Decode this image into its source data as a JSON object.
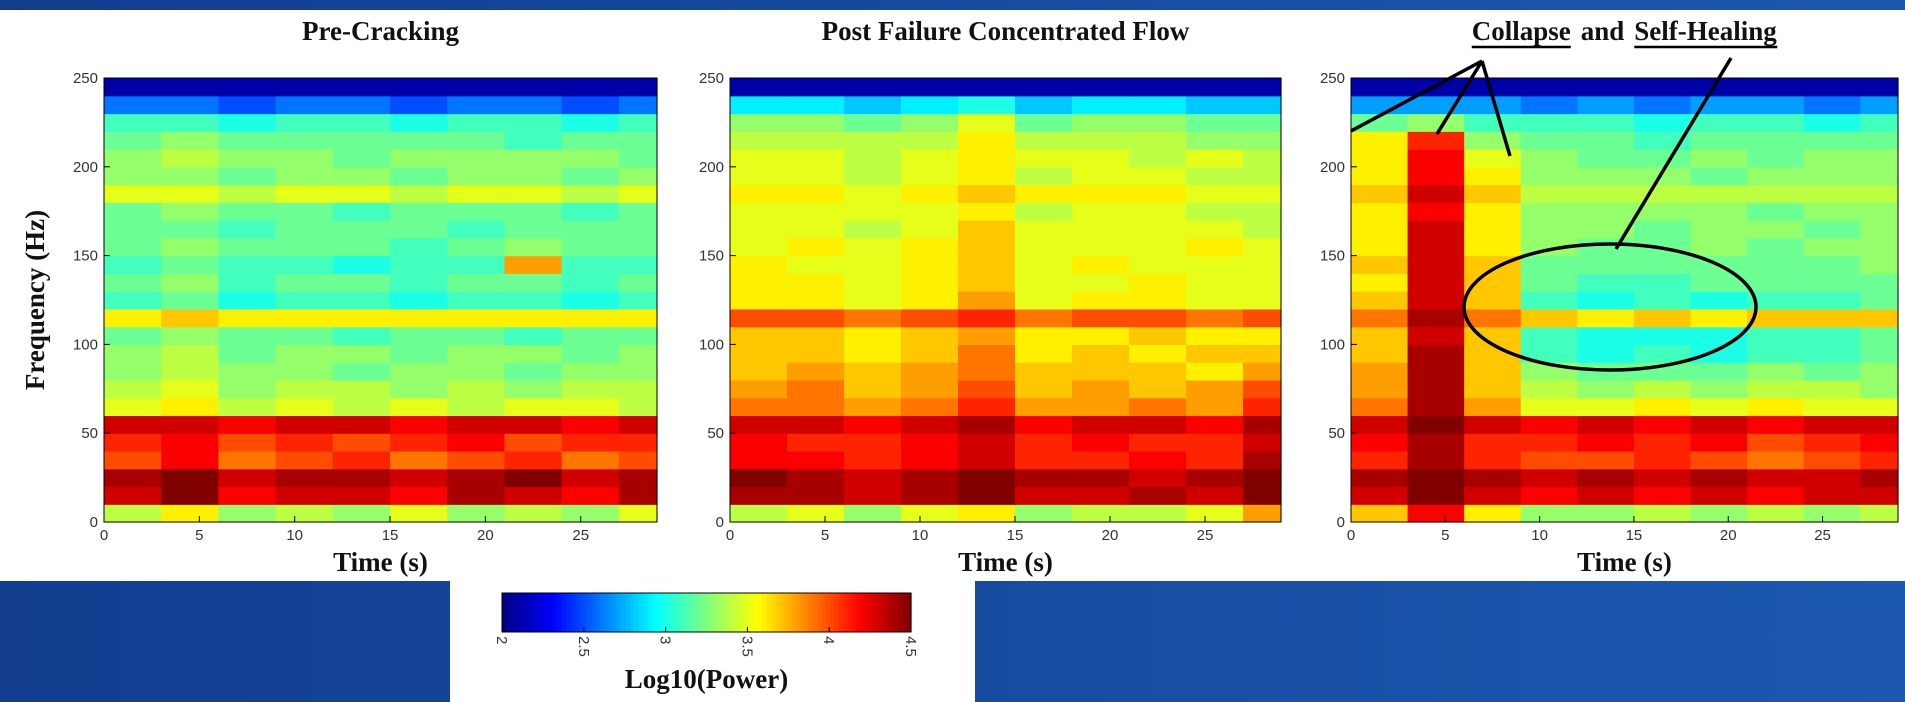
{
  "chart_data": [
    {
      "type": "heatmap",
      "title": "Pre-Cracking",
      "xlabel": "Time (s)",
      "ylabel": "Frequency (Hz)",
      "xlim": [
        0,
        29
      ],
      "ylim": [
        0,
        250
      ],
      "xticks": [
        0,
        5,
        10,
        15,
        20,
        25
      ],
      "yticks": [
        0,
        50,
        100,
        150,
        200,
        250
      ],
      "xbins": [
        0,
        3,
        6,
        9,
        12,
        15,
        18,
        21,
        24,
        27,
        29
      ],
      "ybins": [
        0,
        10,
        20,
        30,
        40,
        50,
        60,
        70,
        80,
        90,
        100,
        110,
        120,
        130,
        140,
        150,
        160,
        170,
        180,
        190,
        200,
        210,
        220,
        230,
        240,
        250
      ],
      "z": [
        [
          3.4,
          3.6,
          3.3,
          3.4,
          3.3,
          3.5,
          3.3,
          3.4,
          3.3,
          3.5
        ],
        [
          4.3,
          4.5,
          4.2,
          4.3,
          4.3,
          4.2,
          4.4,
          4.3,
          4.2,
          4.4
        ],
        [
          4.4,
          4.5,
          4.3,
          4.4,
          4.4,
          4.3,
          4.4,
          4.5,
          4.3,
          4.4
        ],
        [
          4.0,
          4.2,
          3.9,
          4.0,
          4.1,
          3.9,
          4.0,
          4.1,
          3.9,
          4.0
        ],
        [
          4.1,
          4.2,
          4.0,
          4.1,
          4.0,
          4.1,
          4.2,
          4.0,
          4.1,
          4.1
        ],
        [
          4.3,
          4.3,
          4.2,
          4.3,
          4.3,
          4.2,
          4.3,
          4.3,
          4.2,
          4.3
        ],
        [
          3.5,
          3.6,
          3.4,
          3.5,
          3.4,
          3.5,
          3.4,
          3.5,
          3.5,
          3.4
        ],
        [
          3.4,
          3.5,
          3.3,
          3.4,
          3.4,
          3.3,
          3.4,
          3.3,
          3.4,
          3.4
        ],
        [
          3.3,
          3.4,
          3.3,
          3.3,
          3.2,
          3.3,
          3.3,
          3.2,
          3.3,
          3.3
        ],
        [
          3.3,
          3.4,
          3.2,
          3.3,
          3.3,
          3.2,
          3.3,
          3.3,
          3.2,
          3.3
        ],
        [
          3.2,
          3.3,
          3.2,
          3.2,
          3.1,
          3.2,
          3.2,
          3.1,
          3.2,
          3.2
        ],
        [
          3.6,
          3.7,
          3.6,
          3.6,
          3.6,
          3.6,
          3.6,
          3.6,
          3.6,
          3.6
        ],
        [
          3.1,
          3.2,
          3.0,
          3.1,
          3.1,
          3.0,
          3.1,
          3.1,
          3.0,
          3.1
        ],
        [
          3.2,
          3.3,
          3.1,
          3.2,
          3.2,
          3.1,
          3.2,
          3.2,
          3.1,
          3.2
        ],
        [
          3.1,
          3.2,
          3.1,
          3.1,
          3.0,
          3.1,
          3.1,
          3.8,
          3.1,
          3.1
        ],
        [
          3.2,
          3.3,
          3.2,
          3.2,
          3.2,
          3.1,
          3.2,
          3.3,
          3.2,
          3.2
        ],
        [
          3.2,
          3.2,
          3.1,
          3.2,
          3.2,
          3.2,
          3.1,
          3.2,
          3.2,
          3.2
        ],
        [
          3.2,
          3.3,
          3.2,
          3.2,
          3.1,
          3.2,
          3.2,
          3.2,
          3.1,
          3.2
        ],
        [
          3.5,
          3.5,
          3.4,
          3.5,
          3.5,
          3.4,
          3.5,
          3.5,
          3.4,
          3.5
        ],
        [
          3.3,
          3.3,
          3.2,
          3.3,
          3.3,
          3.2,
          3.3,
          3.3,
          3.2,
          3.3
        ],
        [
          3.3,
          3.4,
          3.3,
          3.3,
          3.2,
          3.3,
          3.3,
          3.3,
          3.3,
          3.2
        ],
        [
          3.2,
          3.3,
          3.2,
          3.2,
          3.2,
          3.2,
          3.2,
          3.1,
          3.2,
          3.2
        ],
        [
          3.1,
          3.1,
          3.0,
          3.1,
          3.1,
          3.0,
          3.1,
          3.1,
          3.0,
          3.1
        ],
        [
          2.6,
          2.6,
          2.5,
          2.6,
          2.6,
          2.5,
          2.6,
          2.6,
          2.5,
          2.6
        ],
        [
          2.1,
          2.1,
          2.1,
          2.1,
          2.1,
          2.1,
          2.1,
          2.1,
          2.1,
          2.1
        ]
      ]
    },
    {
      "type": "heatmap",
      "title": "Post Failure Concentrated Flow",
      "xlabel": "Time (s)",
      "xlim": [
        0,
        29
      ],
      "ylim": [
        0,
        250
      ],
      "xticks": [
        0,
        5,
        10,
        15,
        20,
        25
      ],
      "yticks": [
        0,
        50,
        100,
        150,
        200,
        250
      ],
      "xbins": [
        0,
        3,
        6,
        9,
        12,
        15,
        18,
        21,
        24,
        27,
        29
      ],
      "ybins": [
        0,
        10,
        20,
        30,
        40,
        50,
        60,
        70,
        80,
        90,
        100,
        110,
        120,
        130,
        140,
        150,
        160,
        170,
        180,
        190,
        200,
        210,
        220,
        230,
        240,
        250
      ],
      "z": [
        [
          3.4,
          3.5,
          3.3,
          3.5,
          3.6,
          3.3,
          3.4,
          3.4,
          3.5,
          3.8
        ],
        [
          4.4,
          4.4,
          4.3,
          4.4,
          4.5,
          4.3,
          4.3,
          4.4,
          4.3,
          4.5
        ],
        [
          4.5,
          4.4,
          4.3,
          4.4,
          4.5,
          4.4,
          4.4,
          4.3,
          4.4,
          4.5
        ],
        [
          4.2,
          4.2,
          4.1,
          4.2,
          4.3,
          4.1,
          4.1,
          4.2,
          4.1,
          4.4
        ],
        [
          4.2,
          4.1,
          4.1,
          4.2,
          4.3,
          4.1,
          4.2,
          4.1,
          4.1,
          4.3
        ],
        [
          4.3,
          4.3,
          4.2,
          4.3,
          4.4,
          4.2,
          4.3,
          4.3,
          4.2,
          4.4
        ],
        [
          3.9,
          3.9,
          3.8,
          3.9,
          4.1,
          3.8,
          3.8,
          3.9,
          3.8,
          4.1
        ],
        [
          3.8,
          3.9,
          3.7,
          3.8,
          4.0,
          3.7,
          3.8,
          3.7,
          3.8,
          4.0
        ],
        [
          3.7,
          3.8,
          3.7,
          3.8,
          3.9,
          3.7,
          3.7,
          3.7,
          3.6,
          3.8
        ],
        [
          3.7,
          3.7,
          3.6,
          3.7,
          3.9,
          3.6,
          3.7,
          3.6,
          3.7,
          3.7
        ],
        [
          3.7,
          3.7,
          3.6,
          3.7,
          3.8,
          3.6,
          3.6,
          3.7,
          3.6,
          3.6
        ],
        [
          4.0,
          4.0,
          3.9,
          4.0,
          4.1,
          3.9,
          4.0,
          4.0,
          3.9,
          4.0
        ],
        [
          3.6,
          3.6,
          3.5,
          3.6,
          3.8,
          3.5,
          3.6,
          3.6,
          3.5,
          3.5
        ],
        [
          3.6,
          3.6,
          3.5,
          3.6,
          3.7,
          3.5,
          3.5,
          3.6,
          3.5,
          3.5
        ],
        [
          3.6,
          3.5,
          3.5,
          3.6,
          3.7,
          3.5,
          3.6,
          3.5,
          3.5,
          3.5
        ],
        [
          3.5,
          3.6,
          3.5,
          3.6,
          3.7,
          3.5,
          3.5,
          3.5,
          3.6,
          3.5
        ],
        [
          3.5,
          3.5,
          3.4,
          3.5,
          3.7,
          3.5,
          3.5,
          3.5,
          3.5,
          3.4
        ],
        [
          3.5,
          3.5,
          3.5,
          3.5,
          3.6,
          3.4,
          3.5,
          3.5,
          3.4,
          3.4
        ],
        [
          3.6,
          3.6,
          3.5,
          3.6,
          3.7,
          3.6,
          3.6,
          3.6,
          3.5,
          3.5
        ],
        [
          3.5,
          3.5,
          3.4,
          3.5,
          3.6,
          3.4,
          3.5,
          3.5,
          3.4,
          3.4
        ],
        [
          3.5,
          3.5,
          3.4,
          3.5,
          3.6,
          3.5,
          3.5,
          3.4,
          3.5,
          3.4
        ],
        [
          3.4,
          3.4,
          3.4,
          3.4,
          3.6,
          3.4,
          3.4,
          3.4,
          3.3,
          3.3
        ],
        [
          3.3,
          3.3,
          3.2,
          3.3,
          3.5,
          3.2,
          3.3,
          3.3,
          3.2,
          3.2
        ],
        [
          2.9,
          2.9,
          2.8,
          2.9,
          3.0,
          2.8,
          2.9,
          2.9,
          2.8,
          2.8
        ],
        [
          2.1,
          2.1,
          2.1,
          2.1,
          2.1,
          2.1,
          2.1,
          2.1,
          2.1,
          2.1
        ]
      ]
    },
    {
      "type": "heatmap",
      "title": [
        "Collapse",
        "and",
        "Self-Healing"
      ],
      "xlabel": "Time (s)",
      "xlim": [
        0,
        29
      ],
      "ylim": [
        0,
        250
      ],
      "xticks": [
        0,
        5,
        10,
        15,
        20,
        25
      ],
      "yticks": [
        0,
        50,
        100,
        150,
        200,
        250
      ],
      "xbins": [
        0,
        3,
        6,
        9,
        12,
        15,
        18,
        21,
        24,
        27,
        29
      ],
      "ybins": [
        0,
        10,
        20,
        30,
        40,
        50,
        60,
        70,
        80,
        90,
        100,
        110,
        120,
        130,
        140,
        150,
        160,
        170,
        180,
        190,
        200,
        210,
        220,
        230,
        240,
        250
      ],
      "z": [
        [
          3.7,
          4.2,
          3.6,
          3.3,
          3.3,
          3.4,
          3.3,
          3.4,
          3.3,
          3.4
        ],
        [
          4.3,
          4.5,
          4.3,
          4.2,
          4.3,
          4.2,
          4.3,
          4.2,
          4.3,
          4.3
        ],
        [
          4.4,
          4.5,
          4.4,
          4.3,
          4.4,
          4.3,
          4.4,
          4.3,
          4.3,
          4.4
        ],
        [
          4.1,
          4.4,
          4.1,
          4.0,
          4.0,
          4.1,
          4.0,
          3.9,
          4.0,
          4.1
        ],
        [
          4.2,
          4.4,
          4.1,
          4.1,
          4.2,
          4.1,
          4.2,
          4.0,
          4.1,
          4.2
        ],
        [
          4.3,
          4.5,
          4.3,
          4.2,
          4.3,
          4.2,
          4.3,
          4.2,
          4.3,
          4.3
        ],
        [
          3.9,
          4.4,
          3.8,
          3.5,
          3.5,
          3.6,
          3.5,
          3.6,
          3.5,
          3.5
        ],
        [
          3.8,
          4.4,
          3.7,
          3.4,
          3.3,
          3.4,
          3.3,
          3.4,
          3.4,
          3.3
        ],
        [
          3.8,
          4.4,
          3.7,
          3.3,
          3.2,
          3.2,
          3.2,
          3.3,
          3.2,
          3.3
        ],
        [
          3.7,
          4.4,
          3.7,
          3.1,
          3.0,
          3.1,
          3.0,
          3.1,
          3.1,
          3.2
        ],
        [
          3.7,
          4.3,
          3.7,
          3.1,
          3.0,
          3.0,
          3.0,
          3.1,
          3.1,
          3.2
        ],
        [
          3.9,
          4.4,
          3.9,
          3.7,
          3.6,
          3.7,
          3.6,
          3.7,
          3.7,
          3.7
        ],
        [
          3.7,
          4.3,
          3.7,
          3.1,
          3.0,
          3.1,
          3.0,
          3.1,
          3.1,
          3.2
        ],
        [
          3.6,
          4.3,
          3.7,
          3.2,
          3.1,
          3.1,
          3.2,
          3.2,
          3.2,
          3.2
        ],
        [
          3.7,
          4.3,
          3.7,
          3.2,
          3.2,
          3.2,
          3.2,
          3.2,
          3.2,
          3.3
        ],
        [
          3.6,
          4.3,
          3.6,
          3.3,
          3.2,
          3.2,
          3.3,
          3.2,
          3.3,
          3.3
        ],
        [
          3.6,
          4.3,
          3.6,
          3.3,
          3.3,
          3.2,
          3.3,
          3.3,
          3.2,
          3.3
        ],
        [
          3.6,
          4.2,
          3.6,
          3.3,
          3.3,
          3.3,
          3.3,
          3.2,
          3.3,
          3.3
        ],
        [
          3.7,
          4.3,
          3.7,
          3.4,
          3.4,
          3.4,
          3.4,
          3.4,
          3.4,
          3.4
        ],
        [
          3.6,
          4.2,
          3.6,
          3.3,
          3.3,
          3.3,
          3.2,
          3.3,
          3.3,
          3.3
        ],
        [
          3.6,
          4.2,
          3.5,
          3.3,
          3.2,
          3.2,
          3.3,
          3.2,
          3.3,
          3.3
        ],
        [
          3.6,
          4.1,
          3.3,
          3.2,
          3.2,
          3.1,
          3.2,
          3.2,
          3.2,
          3.2
        ],
        [
          3.2,
          3.3,
          3.1,
          3.1,
          3.1,
          3.0,
          3.1,
          3.1,
          3.0,
          3.1
        ],
        [
          2.7,
          2.7,
          2.7,
          2.6,
          2.7,
          2.6,
          2.7,
          2.7,
          2.6,
          2.7
        ],
        [
          2.1,
          2.1,
          2.1,
          2.1,
          2.1,
          2.1,
          2.1,
          2.1,
          2.1,
          2.1
        ]
      ]
    }
  ],
  "colorbar": {
    "label": "Log10(Power)",
    "colormap": "jet",
    "clim": [
      2,
      4.5
    ],
    "ticks": [
      2,
      2.5,
      3,
      3.5,
      4,
      4.5
    ]
  }
}
